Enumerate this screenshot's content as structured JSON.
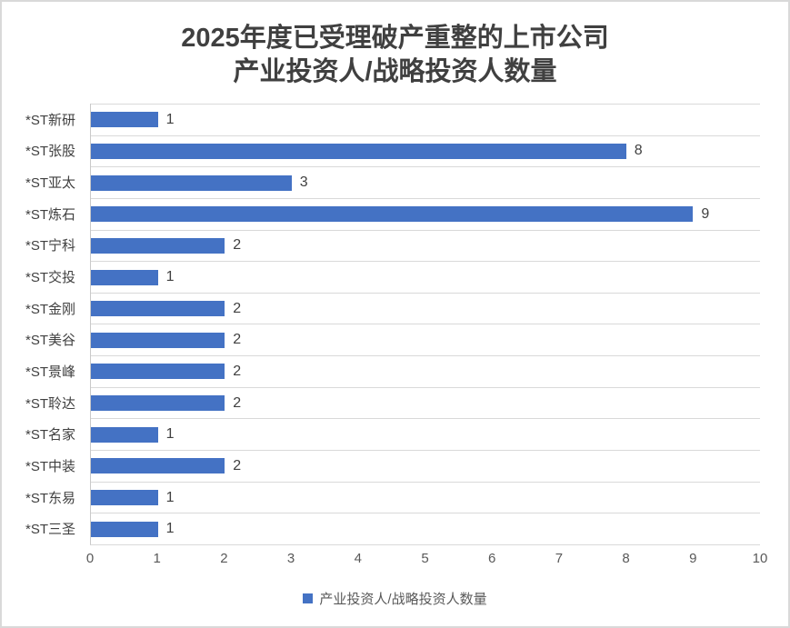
{
  "window": {
    "background": "#ffffff",
    "border_color": "#d9d9d9"
  },
  "chart": {
    "title_line1": "2025年度已受理破产重整的上市公司",
    "title_line2": "产业投资人/战略投资人数量",
    "legend_label": "产业投资人/战略投资人数量",
    "colors": {
      "bar": "#4472c4",
      "gridline": "#d9d9d9",
      "axis_line": "#c9c9c9",
      "title_text": "#404040",
      "category_text": "#404040",
      "value_text": "#404040",
      "tick_text": "#595959",
      "legend_text": "#595959"
    }
  },
  "chart_data": {
    "type": "bar",
    "orientation": "horizontal",
    "title": "2025年度已受理破产重整的上市公司 产业投资人/战略投资人数量",
    "series_name": "产业投资人/战略投资人数量",
    "categories": [
      "*ST新研",
      "*ST张股",
      "*ST亚太",
      "*ST炼石",
      "*ST宁科",
      "*ST交投",
      "*ST金刚",
      "*ST美谷",
      "*ST景峰",
      "*ST聆达",
      "*ST名家",
      "*ST中装",
      "*ST东易",
      "*ST三圣"
    ],
    "values": [
      1,
      8,
      3,
      9,
      2,
      1,
      2,
      2,
      2,
      2,
      1,
      2,
      1,
      1
    ],
    "xlabel": "",
    "ylabel": "",
    "xlim": [
      0,
      10
    ],
    "xticks": [
      0,
      1,
      2,
      3,
      4,
      5,
      6,
      7,
      8,
      9,
      10
    ],
    "data_labels": true,
    "grid": "horizontal category separators only, no vertical gridlines",
    "legend_position": "bottom"
  }
}
